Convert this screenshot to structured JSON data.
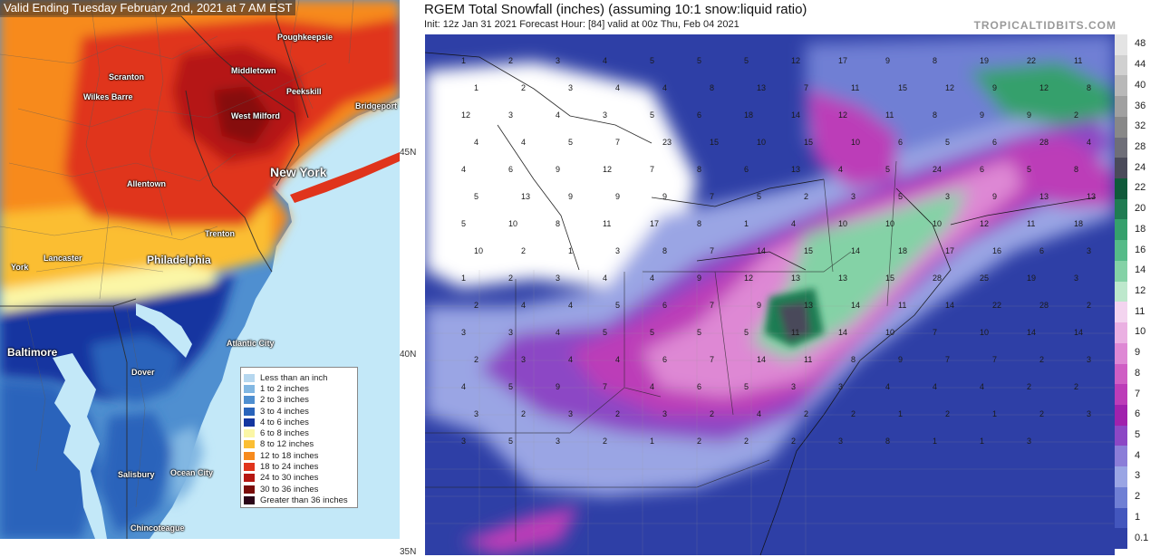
{
  "left_map": {
    "title": "Valid Ending Tuesday February 2nd, 2021 at 7 AM EST",
    "cities": [
      {
        "name": "Poughkeepsie",
        "size": "small"
      },
      {
        "name": "Scranton",
        "size": "small"
      },
      {
        "name": "Middletown",
        "size": "small"
      },
      {
        "name": "Wilkes Barre",
        "size": "small"
      },
      {
        "name": "Peekskill",
        "size": "small"
      },
      {
        "name": "Bridgeport",
        "size": "small"
      },
      {
        "name": "West Milford",
        "size": "small"
      },
      {
        "name": "New York",
        "size": "big"
      },
      {
        "name": "Allentown",
        "size": "small"
      },
      {
        "name": "Trenton",
        "size": "small"
      },
      {
        "name": "Lancaster",
        "size": "small"
      },
      {
        "name": "Philadelphia",
        "size": "mid"
      },
      {
        "name": "York",
        "size": "small"
      },
      {
        "name": "Baltimore",
        "size": "mid"
      },
      {
        "name": "Atlantic City",
        "size": "small"
      },
      {
        "name": "Dover",
        "size": "small"
      },
      {
        "name": "Salisbury",
        "size": "small"
      },
      {
        "name": "Ocean City",
        "size": "small"
      },
      {
        "name": "Chincoteague",
        "size": "small"
      }
    ],
    "legend": [
      {
        "label": "Less than an inch",
        "color": "#b6d7ef"
      },
      {
        "label": "1 to 2 inches",
        "color": "#82b7e2"
      },
      {
        "label": "2 to 3 inches",
        "color": "#4f8fd0"
      },
      {
        "label": "3 to 4 inches",
        "color": "#2a64bb"
      },
      {
        "label": "4 to 6 inches",
        "color": "#1436a0"
      },
      {
        "label": "6 to 8 inches",
        "color": "#fbf6a6"
      },
      {
        "label": "8 to 12 inches",
        "color": "#fbbe33"
      },
      {
        "label": "12 to 18 inches",
        "color": "#f78a1d"
      },
      {
        "label": "18 to 24 inches",
        "color": "#e0341c"
      },
      {
        "label": "24 to 30 inches",
        "color": "#b51712"
      },
      {
        "label": "30 to 36 inches",
        "color": "#7a0d0a"
      },
      {
        "label": "Greater than 36 inches",
        "color": "#2b0518"
      }
    ]
  },
  "right_map": {
    "title": "RGEM Total Snowfall (inches) (assuming 10:1 snow:liquid ratio)",
    "subtitle": "Init: 12z Jan 31 2021   Forecast Hour: [84]   valid at 00z Thu, Feb 04 2021",
    "brand": "TROPICALTIDBITS.COM",
    "lat_labels": [
      "45N",
      "40N",
      "35N"
    ],
    "scale": [
      {
        "label": "48",
        "color": "#e4e4e4"
      },
      {
        "label": "44",
        "color": "#d0d0d0"
      },
      {
        "label": "40",
        "color": "#b8b8b8"
      },
      {
        "label": "36",
        "color": "#a0a0a0"
      },
      {
        "label": "32",
        "color": "#888888"
      },
      {
        "label": "28",
        "color": "#6e6e78"
      },
      {
        "label": "24",
        "color": "#4a4a5a"
      },
      {
        "label": "22",
        "color": "#0f5a3a"
      },
      {
        "label": "20",
        "color": "#1f7c52"
      },
      {
        "label": "18",
        "color": "#35a06c"
      },
      {
        "label": "16",
        "color": "#55bb88"
      },
      {
        "label": "14",
        "color": "#84d2a6"
      },
      {
        "label": "12",
        "color": "#bde8cc"
      },
      {
        "label": "11",
        "color": "#f3d4ef"
      },
      {
        "label": "10",
        "color": "#eab0e2"
      },
      {
        "label": "9",
        "color": "#de88d4"
      },
      {
        "label": "8",
        "color": "#cf5ec4"
      },
      {
        "label": "7",
        "color": "#bc3cb8"
      },
      {
        "label": "6",
        "color": "#a021ad"
      },
      {
        "label": "5",
        "color": "#8c47c5"
      },
      {
        "label": "4",
        "color": "#8b7dd8"
      },
      {
        "label": "3",
        "color": "#9aa5e4"
      },
      {
        "label": "2",
        "color": "#6f7fd4"
      },
      {
        "label": "1",
        "color": "#4356bd"
      },
      {
        "label": "0.1",
        "color": "#2e3fa6"
      }
    ],
    "values": [
      {
        "v": "1"
      },
      {
        "v": "2"
      },
      {
        "v": "3"
      },
      {
        "v": "4"
      },
      {
        "v": "5"
      },
      {
        "v": "5"
      },
      {
        "v": "5"
      },
      {
        "v": "12"
      },
      {
        "v": "17"
      },
      {
        "v": "9"
      },
      {
        "v": "8"
      },
      {
        "v": "19"
      },
      {
        "v": "22"
      },
      {
        "v": "11"
      },
      {
        "v": "1"
      },
      {
        "v": "2"
      },
      {
        "v": "3"
      },
      {
        "v": "4"
      },
      {
        "v": "4"
      },
      {
        "v": "8"
      },
      {
        "v": "13"
      },
      {
        "v": "7"
      },
      {
        "v": "11"
      },
      {
        "v": "15"
      },
      {
        "v": "12"
      },
      {
        "v": "9"
      },
      {
        "v": "12"
      },
      {
        "v": "8"
      },
      {
        "v": "12"
      },
      {
        "v": "3"
      },
      {
        "v": "4"
      },
      {
        "v": "3"
      },
      {
        "v": "5"
      },
      {
        "v": "6"
      },
      {
        "v": "18"
      },
      {
        "v": "14"
      },
      {
        "v": "12"
      },
      {
        "v": "11"
      },
      {
        "v": "8"
      },
      {
        "v": "9"
      },
      {
        "v": "9"
      },
      {
        "v": "2"
      },
      {
        "v": "4"
      },
      {
        "v": "4"
      },
      {
        "v": "5"
      },
      {
        "v": "7"
      },
      {
        "v": "23"
      },
      {
        "v": "15"
      },
      {
        "v": "10"
      },
      {
        "v": "15"
      },
      {
        "v": "10"
      },
      {
        "v": "6"
      },
      {
        "v": "5"
      },
      {
        "v": "6"
      },
      {
        "v": "28"
      },
      {
        "v": "4"
      },
      {
        "v": "4"
      },
      {
        "v": "6"
      },
      {
        "v": "9"
      },
      {
        "v": "12"
      },
      {
        "v": "7"
      },
      {
        "v": "8"
      },
      {
        "v": "6"
      },
      {
        "v": "13"
      },
      {
        "v": "4"
      },
      {
        "v": "5"
      },
      {
        "v": "24"
      },
      {
        "v": "6"
      },
      {
        "v": "5"
      },
      {
        "v": "8"
      },
      {
        "v": "5"
      },
      {
        "v": "13"
      },
      {
        "v": "9"
      },
      {
        "v": "9"
      },
      {
        "v": "9"
      },
      {
        "v": "7"
      },
      {
        "v": "5"
      },
      {
        "v": "2"
      },
      {
        "v": "3"
      },
      {
        "v": "5"
      },
      {
        "v": "3"
      },
      {
        "v": "9"
      },
      {
        "v": "13"
      },
      {
        "v": "13"
      },
      {
        "v": "5"
      },
      {
        "v": "10"
      },
      {
        "v": "8"
      },
      {
        "v": "11"
      },
      {
        "v": "17"
      },
      {
        "v": "8"
      },
      {
        "v": "1"
      },
      {
        "v": "4"
      },
      {
        "v": "10"
      },
      {
        "v": "10"
      },
      {
        "v": "10"
      },
      {
        "v": "12"
      },
      {
        "v": "11"
      },
      {
        "v": "18"
      },
      {
        "v": "10"
      },
      {
        "v": "2"
      },
      {
        "v": "1"
      },
      {
        "v": "3"
      },
      {
        "v": "8"
      },
      {
        "v": "7"
      },
      {
        "v": "14"
      },
      {
        "v": "15"
      },
      {
        "v": "14"
      },
      {
        "v": "18"
      },
      {
        "v": "17"
      },
      {
        "v": "16"
      },
      {
        "v": "6"
      },
      {
        "v": "3"
      },
      {
        "v": "1"
      },
      {
        "v": "2"
      },
      {
        "v": "3"
      },
      {
        "v": "4"
      },
      {
        "v": "4"
      },
      {
        "v": "9"
      },
      {
        "v": "12"
      },
      {
        "v": "13"
      },
      {
        "v": "13"
      },
      {
        "v": "15"
      },
      {
        "v": "28"
      },
      {
        "v": "25"
      },
      {
        "v": "19"
      },
      {
        "v": "3"
      },
      {
        "v": "2"
      },
      {
        "v": "4"
      },
      {
        "v": "4"
      },
      {
        "v": "5"
      },
      {
        "v": "6"
      },
      {
        "v": "7"
      },
      {
        "v": "9"
      },
      {
        "v": "13"
      },
      {
        "v": "14"
      },
      {
        "v": "11"
      },
      {
        "v": "14"
      },
      {
        "v": "22"
      },
      {
        "v": "28"
      },
      {
        "v": "2"
      },
      {
        "v": "3"
      },
      {
        "v": "3"
      },
      {
        "v": "4"
      },
      {
        "v": "5"
      },
      {
        "v": "5"
      },
      {
        "v": "5"
      },
      {
        "v": "5"
      },
      {
        "v": "11"
      },
      {
        "v": "14"
      },
      {
        "v": "10"
      },
      {
        "v": "7"
      },
      {
        "v": "10"
      },
      {
        "v": "14"
      },
      {
        "v": "14"
      },
      {
        "v": "2"
      },
      {
        "v": "3"
      },
      {
        "v": "4"
      },
      {
        "v": "4"
      },
      {
        "v": "6"
      },
      {
        "v": "7"
      },
      {
        "v": "14"
      },
      {
        "v": "11"
      },
      {
        "v": "8"
      },
      {
        "v": "9"
      },
      {
        "v": "7"
      },
      {
        "v": "7"
      },
      {
        "v": "2"
      },
      {
        "v": "3"
      },
      {
        "v": "4"
      },
      {
        "v": "5"
      },
      {
        "v": "9"
      },
      {
        "v": "7"
      },
      {
        "v": "4"
      },
      {
        "v": "6"
      },
      {
        "v": "5"
      },
      {
        "v": "3"
      },
      {
        "v": "3"
      },
      {
        "v": "4"
      },
      {
        "v": "4"
      },
      {
        "v": "4"
      },
      {
        "v": "2"
      },
      {
        "v": "2"
      },
      {
        "v": "3"
      },
      {
        "v": "2"
      },
      {
        "v": "3"
      },
      {
        "v": "2"
      },
      {
        "v": "3"
      },
      {
        "v": "2"
      },
      {
        "v": "4"
      },
      {
        "v": "2"
      },
      {
        "v": "2"
      },
      {
        "v": "1"
      },
      {
        "v": "2"
      },
      {
        "v": "1"
      },
      {
        "v": "2"
      },
      {
        "v": "3"
      },
      {
        "v": "3"
      },
      {
        "v": "5"
      },
      {
        "v": "3"
      },
      {
        "v": "2"
      },
      {
        "v": "1"
      },
      {
        "v": "2"
      },
      {
        "v": "2"
      },
      {
        "v": "2"
      },
      {
        "v": "3"
      },
      {
        "v": "8"
      },
      {
        "v": "1"
      },
      {
        "v": "1"
      },
      {
        "v": "3"
      }
    ]
  }
}
